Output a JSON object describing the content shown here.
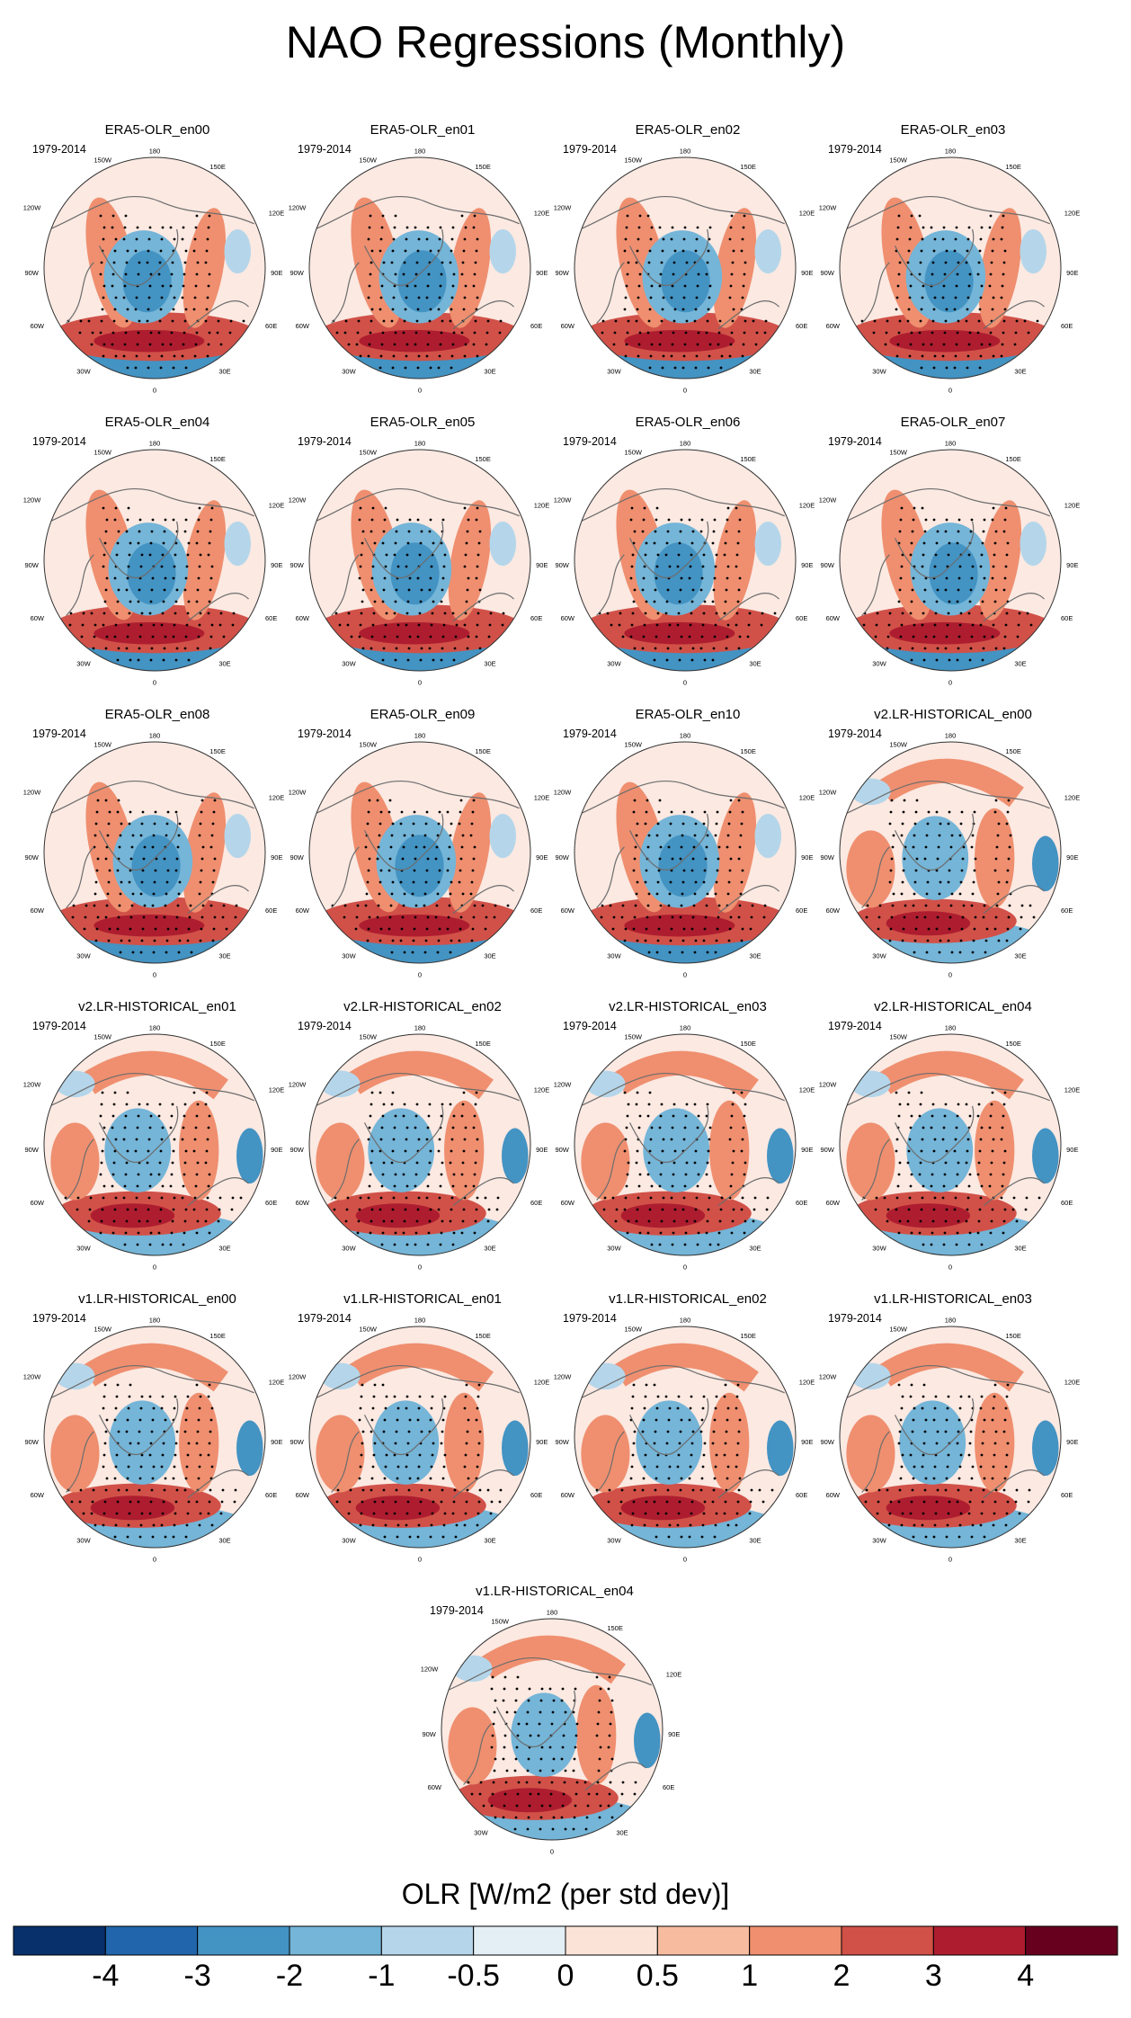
{
  "figure_title": "NAO Regressions (Monthly)",
  "period": "1979-2014",
  "lon_labels": {
    "top": "180",
    "top_left": "150W",
    "top_right": "150E",
    "upper_left": "120W",
    "upper_right": "120E",
    "left": "90W",
    "right": "90E",
    "lower_left": "60W",
    "lower_right": "60E",
    "bottom_left": "30W",
    "bottom_right": "30E",
    "bottom": "0"
  },
  "panels": [
    {
      "title": "ERA5-OLR_en00",
      "group": "era5"
    },
    {
      "title": "ERA5-OLR_en01",
      "group": "era5"
    },
    {
      "title": "ERA5-OLR_en02",
      "group": "era5"
    },
    {
      "title": "ERA5-OLR_en03",
      "group": "era5"
    },
    {
      "title": "ERA5-OLR_en04",
      "group": "era5"
    },
    {
      "title": "ERA5-OLR_en05",
      "group": "era5"
    },
    {
      "title": "ERA5-OLR_en06",
      "group": "era5"
    },
    {
      "title": "ERA5-OLR_en07",
      "group": "era5"
    },
    {
      "title": "ERA5-OLR_en08",
      "group": "era5"
    },
    {
      "title": "ERA5-OLR_en09",
      "group": "era5"
    },
    {
      "title": "ERA5-OLR_en10",
      "group": "era5"
    },
    {
      "title": "v2.LR-HISTORICAL_en00",
      "group": "model"
    },
    {
      "title": "v2.LR-HISTORICAL_en01",
      "group": "model"
    },
    {
      "title": "v2.LR-HISTORICAL_en02",
      "group": "model"
    },
    {
      "title": "v2.LR-HISTORICAL_en03",
      "group": "model"
    },
    {
      "title": "v2.LR-HISTORICAL_en04",
      "group": "model"
    },
    {
      "title": "v1.LR-HISTORICAL_en00",
      "group": "model"
    },
    {
      "title": "v1.LR-HISTORICAL_en01",
      "group": "model"
    },
    {
      "title": "v1.LR-HISTORICAL_en02",
      "group": "model"
    },
    {
      "title": "v1.LR-HISTORICAL_en03",
      "group": "model"
    },
    {
      "title": "v1.LR-HISTORICAL_en04",
      "group": "model"
    }
  ],
  "colorbar": {
    "title": "OLR [W/m2 (per std dev)]",
    "labels": [
      "-4",
      "-3",
      "-2",
      "-1",
      "-0.5",
      "0",
      "0.5",
      "1",
      "2",
      "3",
      "4"
    ],
    "colors": [
      "#08306b",
      "#2166ac",
      "#4393c3",
      "#74b5d8",
      "#b5d6ea",
      "#e4eef5",
      "#fbe3d8",
      "#f7bca0",
      "#ef8f6f",
      "#d15148",
      "#ad1d2f",
      "#67001f"
    ]
  },
  "chart_data": {
    "type": "heatmap",
    "title": "NAO Regressions (Monthly)",
    "variable": "OLR [W/m2 (per std dev)]",
    "period": "1979-2014",
    "projection": "north polar stereographic",
    "contour_levels": [
      -4,
      -3,
      -2,
      -1,
      -0.5,
      0,
      0.5,
      1,
      2,
      3,
      4
    ],
    "stippling": "statistically significant regions",
    "panel_count": 21
  }
}
